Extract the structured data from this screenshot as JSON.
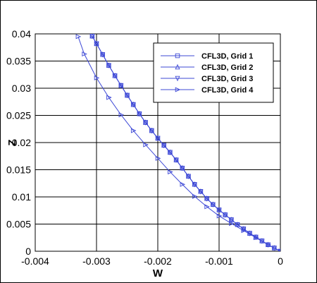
{
  "chart_data": {
    "type": "line",
    "xlabel": "W",
    "ylabel": "Z",
    "xlim": [
      -0.004,
      0
    ],
    "ylim": [
      0,
      0.04
    ],
    "x_ticks": [
      "-0.004",
      "-0.003",
      "-0.002",
      "-0.001",
      "0"
    ],
    "y_ticks": [
      "0",
      "0.005",
      "0.01",
      "0.015",
      "0.02",
      "0.025",
      "0.03",
      "0.035",
      "0.04"
    ],
    "grid": true,
    "legend_position": "top-right",
    "series_color": "#3d48d6",
    "series": [
      {
        "name": "CFL3D, Grid 1",
        "marker": "square",
        "points": [
          [
            0,
            0
          ],
          [
            -0.0001,
            0.0006
          ],
          [
            -0.0002,
            0.0012
          ],
          [
            -0.0003,
            0.0019
          ],
          [
            -0.0004,
            0.0026
          ],
          [
            -0.0005,
            0.0033
          ],
          [
            -0.0006,
            0.0041
          ],
          [
            -0.0007,
            0.0049
          ],
          [
            -0.0008,
            0.0058
          ],
          [
            -0.0009,
            0.0067
          ],
          [
            -0.001,
            0.0076
          ],
          [
            -0.0011,
            0.0086
          ],
          [
            -0.0012,
            0.0097
          ],
          [
            -0.0013,
            0.011
          ],
          [
            -0.0014,
            0.0123
          ],
          [
            -0.0015,
            0.0138
          ],
          [
            -0.0016,
            0.0153
          ],
          [
            -0.0017,
            0.0168
          ],
          [
            -0.0018,
            0.0182
          ],
          [
            -0.0019,
            0.0195
          ],
          [
            -0.002,
            0.0208
          ],
          [
            -0.0021,
            0.0222
          ],
          [
            -0.0022,
            0.0237
          ],
          [
            -0.0023,
            0.0253
          ],
          [
            -0.0024,
            0.027
          ],
          [
            -0.0025,
            0.0287
          ],
          [
            -0.0026,
            0.0305
          ],
          [
            -0.0027,
            0.0323
          ],
          [
            -0.0028,
            0.0342
          ],
          [
            -0.0029,
            0.0362
          ],
          [
            -0.003,
            0.0382
          ],
          [
            -0.00307,
            0.0396
          ]
        ]
      },
      {
        "name": "CFL3D, Grid 2",
        "marker": "triangle-up",
        "points": [
          [
            0,
            0
          ],
          [
            -0.0001,
            0.0006
          ],
          [
            -0.0002,
            0.0012
          ],
          [
            -0.0003,
            0.0019
          ],
          [
            -0.0004,
            0.0026
          ],
          [
            -0.0005,
            0.0033
          ],
          [
            -0.0006,
            0.0041
          ],
          [
            -0.0007,
            0.0049
          ],
          [
            -0.0008,
            0.0058
          ],
          [
            -0.0009,
            0.0067
          ],
          [
            -0.001,
            0.0076
          ],
          [
            -0.0011,
            0.0086
          ],
          [
            -0.0012,
            0.0097
          ],
          [
            -0.0013,
            0.011
          ],
          [
            -0.0014,
            0.0123
          ],
          [
            -0.0015,
            0.0138
          ],
          [
            -0.0016,
            0.0153
          ],
          [
            -0.0017,
            0.0168
          ],
          [
            -0.0018,
            0.0182
          ],
          [
            -0.0019,
            0.0195
          ],
          [
            -0.002,
            0.0208
          ],
          [
            -0.0021,
            0.0222
          ],
          [
            -0.0022,
            0.0237
          ],
          [
            -0.0023,
            0.0253
          ],
          [
            -0.0024,
            0.027
          ],
          [
            -0.0025,
            0.0287
          ],
          [
            -0.0026,
            0.0305
          ],
          [
            -0.0027,
            0.0323
          ],
          [
            -0.0028,
            0.0342
          ],
          [
            -0.0029,
            0.0362
          ],
          [
            -0.003,
            0.0382
          ],
          [
            -0.00307,
            0.0396
          ]
        ]
      },
      {
        "name": "CFL3D, Grid 3",
        "marker": "triangle-down",
        "points": [
          [
            0,
            0
          ],
          [
            -0.0001,
            0.0006
          ],
          [
            -0.0002,
            0.0012
          ],
          [
            -0.0003,
            0.0019
          ],
          [
            -0.0004,
            0.0026
          ],
          [
            -0.0005,
            0.0033
          ],
          [
            -0.0006,
            0.0041
          ],
          [
            -0.0007,
            0.0049
          ],
          [
            -0.0008,
            0.0058
          ],
          [
            -0.0009,
            0.0067
          ],
          [
            -0.001,
            0.0076
          ],
          [
            -0.0011,
            0.0086
          ],
          [
            -0.0012,
            0.0097
          ],
          [
            -0.0013,
            0.011
          ],
          [
            -0.0014,
            0.0123
          ],
          [
            -0.0015,
            0.0138
          ],
          [
            -0.0016,
            0.0153
          ],
          [
            -0.0017,
            0.0168
          ],
          [
            -0.0018,
            0.0182
          ],
          [
            -0.0019,
            0.0195
          ],
          [
            -0.002,
            0.0208
          ],
          [
            -0.0021,
            0.0222
          ],
          [
            -0.0022,
            0.0237
          ],
          [
            -0.0023,
            0.0253
          ],
          [
            -0.0024,
            0.027
          ],
          [
            -0.0025,
            0.0287
          ],
          [
            -0.0026,
            0.0305
          ],
          [
            -0.0027,
            0.0323
          ],
          [
            -0.0028,
            0.0342
          ],
          [
            -0.0029,
            0.0362
          ],
          [
            -0.003,
            0.0382
          ],
          [
            -0.00307,
            0.0396
          ]
        ]
      },
      {
        "name": "CFL3D, Grid 4",
        "marker": "triangle-right",
        "points": [
          [
            0,
            0
          ],
          [
            -0.0002,
            0.0012
          ],
          [
            -0.0004,
            0.0025
          ],
          [
            -0.0006,
            0.0038
          ],
          [
            -0.0008,
            0.0051
          ],
          [
            -0.001,
            0.0065
          ],
          [
            -0.0012,
            0.0082
          ],
          [
            -0.0014,
            0.0101
          ],
          [
            -0.0016,
            0.0123
          ],
          [
            -0.0018,
            0.0146
          ],
          [
            -0.002,
            0.0171
          ],
          [
            -0.0022,
            0.0196
          ],
          [
            -0.0024,
            0.0222
          ],
          [
            -0.0026,
            0.0251
          ],
          [
            -0.0028,
            0.0283
          ],
          [
            -0.003,
            0.0319
          ],
          [
            -0.0032,
            0.0363
          ],
          [
            -0.0033,
            0.0395
          ]
        ]
      }
    ]
  }
}
